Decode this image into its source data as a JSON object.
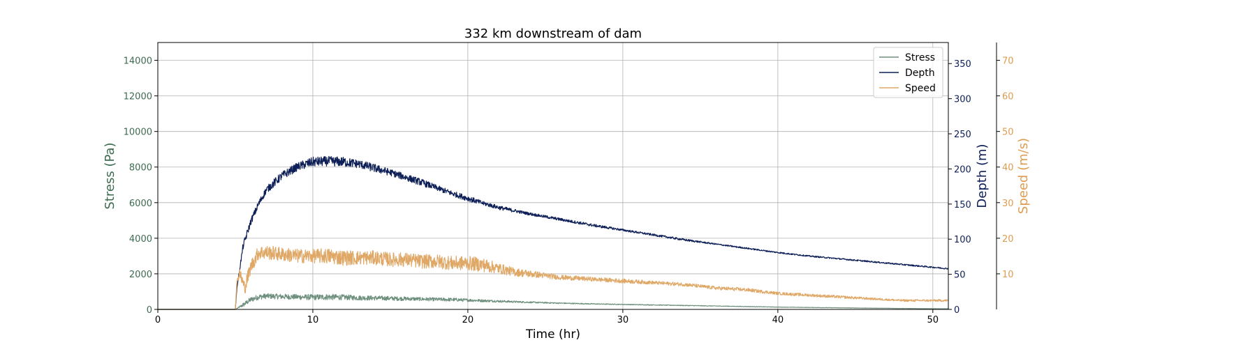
{
  "chart_data": {
    "type": "line",
    "title": "332 km downstream of dam",
    "xlabel": "Time (hr)",
    "xlim": [
      0,
      51
    ],
    "xticks": [
      0,
      10,
      20,
      30,
      40,
      50
    ],
    "grid": true,
    "legend_position": "top-right",
    "axes": {
      "stress": {
        "label": "Stress (Pa)",
        "ylim": [
          0,
          15000
        ],
        "ticks": [
          0,
          2000,
          4000,
          6000,
          8000,
          10000,
          12000,
          14000
        ],
        "color": "#3d6b50"
      },
      "depth": {
        "label": "Depth (m)",
        "ylim": [
          0,
          380
        ],
        "ticks": [
          0,
          50,
          100,
          150,
          200,
          250,
          300,
          350
        ],
        "color": "#0d1f56"
      },
      "speed": {
        "label": "Speed (m/s)",
        "ylim": [
          0,
          75
        ],
        "ticks": [
          10,
          20,
          30,
          40,
          50,
          60,
          70
        ],
        "color": "#de9c50"
      }
    },
    "series": [
      {
        "name": "Stress",
        "axis": "stress",
        "color": "#6e8f7d",
        "x": [
          0,
          5.0,
          5.1,
          5.5,
          6,
          6.5,
          7,
          8,
          9,
          10,
          11,
          12,
          13,
          14,
          15,
          16,
          17,
          18,
          19,
          20,
          22,
          24,
          26,
          28,
          30,
          32,
          34,
          36,
          38,
          40,
          42,
          44,
          46,
          48,
          50,
          51
        ],
        "y": [
          0,
          0,
          50,
          250,
          550,
          700,
          750,
          720,
          700,
          680,
          700,
          680,
          650,
          640,
          620,
          600,
          580,
          560,
          550,
          520,
          460,
          400,
          350,
          310,
          280,
          250,
          220,
          190,
          160,
          130,
          110,
          90,
          70,
          55,
          40,
          35
        ],
        "noise": [
          0,
          0,
          0,
          120,
          150,
          150,
          150,
          150,
          150,
          160,
          170,
          150,
          140,
          130,
          120,
          110,
          100,
          100,
          100,
          80,
          60,
          40,
          30,
          25,
          20,
          20,
          18,
          16,
          14,
          12,
          10,
          10,
          8,
          8,
          6,
          6
        ]
      },
      {
        "name": "Depth",
        "axis": "depth",
        "color": "#0d1f56",
        "x": [
          0,
          5.0,
          5.1,
          5.5,
          6,
          6.5,
          7,
          7.5,
          8,
          9,
          10,
          11,
          12,
          13,
          14,
          15,
          16,
          17,
          18,
          19,
          20,
          21,
          22,
          24,
          26,
          28,
          30,
          32,
          34,
          36,
          38,
          40,
          42,
          44,
          46,
          48,
          50,
          51
        ],
        "y": [
          0,
          0,
          30,
          90,
          125,
          150,
          170,
          180,
          190,
          203,
          210,
          211,
          210,
          207,
          201,
          195,
          188,
          181,
          173,
          165,
          158,
          151,
          145,
          136,
          128,
          120,
          113,
          106,
          99,
          93,
          87,
          81,
          76,
          72,
          68,
          64,
          60,
          58
        ],
        "noise": [
          0,
          0,
          0,
          5,
          5,
          5,
          5,
          6,
          6,
          6,
          7,
          7,
          7,
          6,
          6,
          5,
          5,
          5,
          4,
          4,
          4,
          3,
          3,
          2,
          2,
          2,
          1.5,
          1.5,
          1.5,
          1,
          1,
          1,
          1,
          1,
          1,
          1,
          1,
          1
        ]
      },
      {
        "name": "Speed",
        "axis": "speed",
        "color": "#e0a866",
        "x": [
          0,
          5.0,
          5.1,
          5.3,
          5.6,
          6,
          6.5,
          7,
          8,
          9,
          10,
          11,
          12,
          13,
          14,
          15,
          16,
          17,
          18,
          19,
          20,
          21,
          22,
          23,
          24,
          25,
          26,
          28,
          30,
          32,
          34,
          36,
          38,
          40,
          42,
          44,
          46,
          48,
          50,
          51
        ],
        "y": [
          0,
          0,
          8,
          10,
          6,
          12,
          16,
          16,
          15.5,
          15,
          15,
          15,
          14.5,
          14.5,
          14.5,
          14,
          14,
          13.5,
          13.5,
          13,
          13,
          12.5,
          11.5,
          10.5,
          10,
          9.5,
          9,
          8.5,
          8,
          7.5,
          7,
          6,
          5.5,
          4.5,
          4,
          3.5,
          3,
          2.5,
          2.5,
          2.5
        ],
        "noise": [
          0,
          0,
          0,
          2,
          2,
          2,
          2,
          2,
          2,
          2,
          2,
          2.2,
          2.2,
          2,
          2,
          2,
          2,
          2,
          2,
          2,
          2,
          2,
          1.5,
          1.2,
          1,
          0.8,
          0.7,
          0.6,
          0.6,
          0.5,
          0.5,
          0.5,
          0.5,
          0.4,
          0.4,
          0.4,
          0.3,
          0.3,
          0.3,
          0.3
        ]
      }
    ]
  }
}
